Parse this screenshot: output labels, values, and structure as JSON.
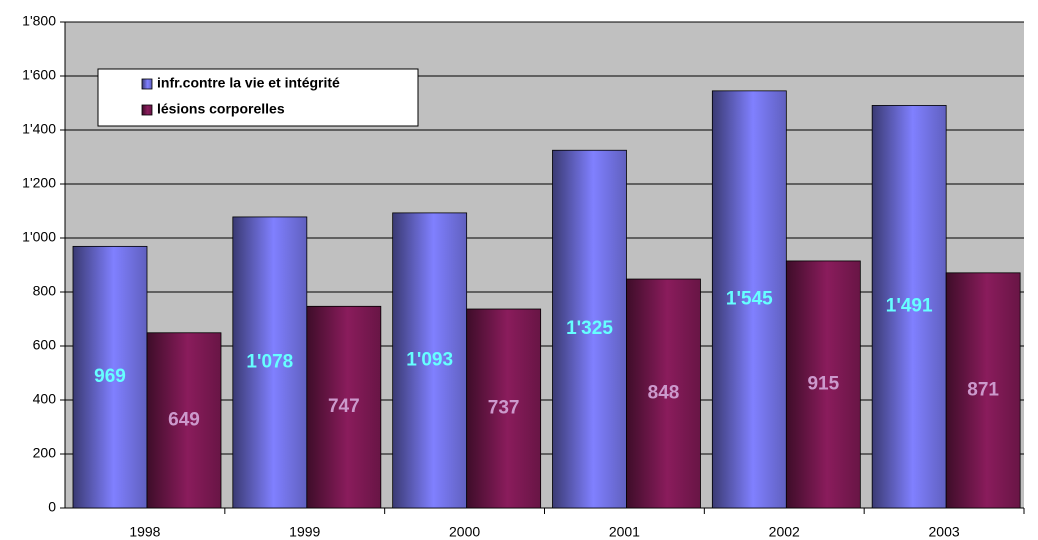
{
  "chart_data": {
    "type": "bar",
    "categories": [
      "1998",
      "1999",
      "2000",
      "2001",
      "2002",
      "2003"
    ],
    "series": [
      {
        "name": "infr.contre la vie et intégrité",
        "color": "#8080ff",
        "label_color": "#66ffff",
        "values": [
          969,
          1078,
          1093,
          1325,
          1545,
          1491
        ],
        "value_labels": [
          "969",
          "1'078",
          "1'093",
          "1'325",
          "1'545",
          "1'491"
        ]
      },
      {
        "name": "lésions corporelles",
        "color": "#8a1c5c",
        "label_color": "#cc99cc",
        "values": [
          649,
          747,
          737,
          848,
          915,
          871
        ],
        "value_labels": [
          "649",
          "747",
          "737",
          "848",
          "915",
          "871"
        ]
      }
    ],
    "ylim": [
      0,
      1800
    ],
    "yticks": [
      0,
      200,
      400,
      600,
      800,
      {
        "value": 1000,
        "label": "1'000"
      },
      {
        "value": 1200,
        "label": "1'200"
      },
      {
        "value": 1400,
        "label": "1'400"
      },
      {
        "value": 1600,
        "label": "1'600"
      },
      {
        "value": 1800,
        "label": "1'800"
      }
    ],
    "grid": true,
    "legend": "top-left"
  }
}
